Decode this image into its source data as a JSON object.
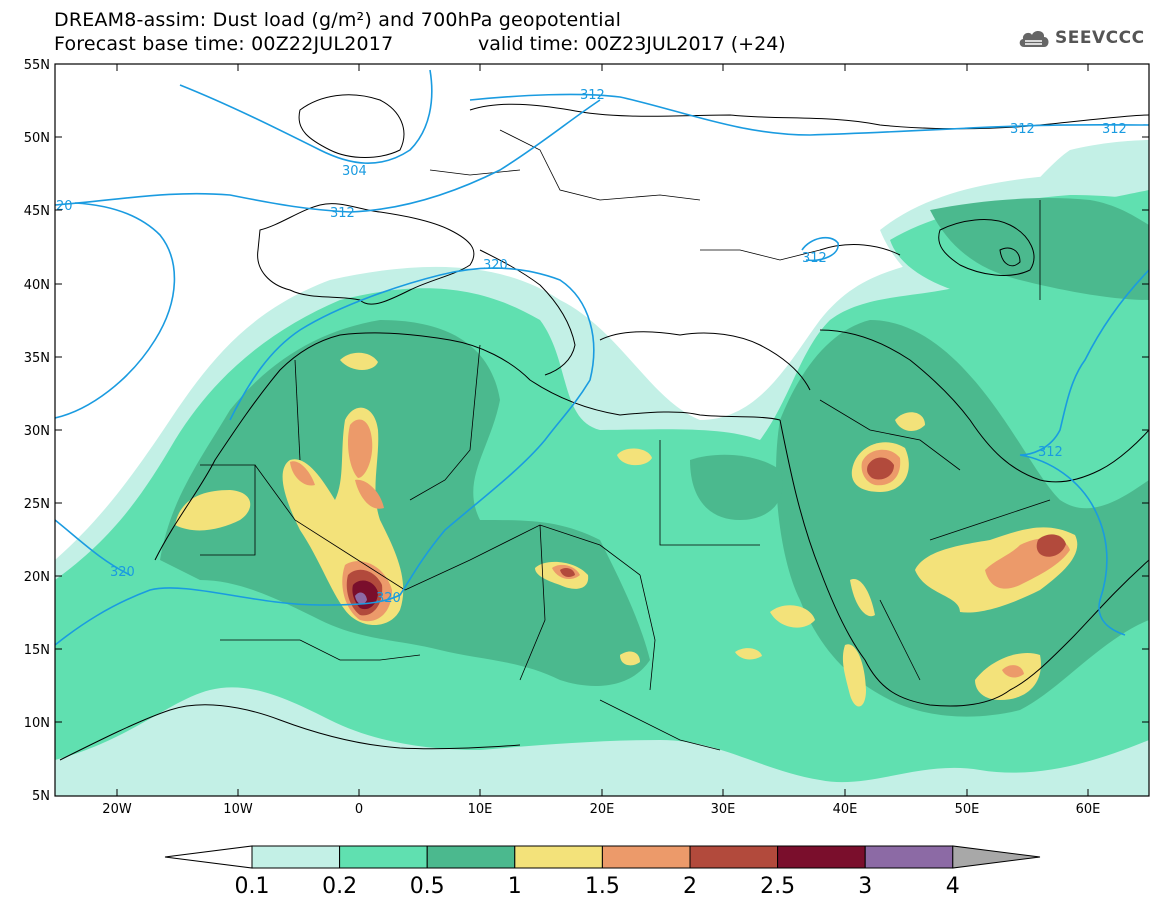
{
  "title": {
    "line1": "DREAM8-assim: Dust load (g/m²) and 700hPa geopotential",
    "base_time": "Forecast base time: 00Z22JUL2017",
    "valid_time": "valid time: 00Z23JUL2017 (+24)"
  },
  "logo": {
    "text": "SEEVCCC",
    "icon": "cloud-icon"
  },
  "axes": {
    "lat_labels": [
      "55N",
      "50N",
      "45N",
      "40N",
      "35N",
      "30N",
      "25N",
      "20N",
      "15N",
      "10N",
      "5N"
    ],
    "lon_labels": [
      "20W",
      "10W",
      "0",
      "10E",
      "20E",
      "30E",
      "40E",
      "50E",
      "60E"
    ]
  },
  "contour_labels": [
    "312",
    "312",
    "312",
    "304",
    "312",
    "312",
    "320",
    "320",
    "320",
    "312",
    "20"
  ],
  "colorbar": {
    "labels": [
      "0.1",
      "0.2",
      "0.5",
      "1",
      "1.5",
      "2",
      "2.5",
      "3",
      "4"
    ],
    "colors": [
      "#c3f0e6",
      "#60e0b0",
      "#4bb98e",
      "#f3e27a",
      "#ec9a6a",
      "#b24a3c",
      "#7a0e2c",
      "#8c6aa5",
      "#a8a8a8"
    ]
  },
  "colors": {
    "coast": "#000000",
    "contour": "#1a9be0",
    "dust_level_1": "#c3f0e6",
    "dust_level_2": "#60e0b0",
    "dust_level_3": "#4bb98e",
    "dust_level_4": "#f3e27a",
    "dust_level_5": "#ec9a6a",
    "dust_level_6": "#b24a3c",
    "dust_level_7": "#7a0e2c",
    "dust_level_8": "#8c6aa5"
  }
}
